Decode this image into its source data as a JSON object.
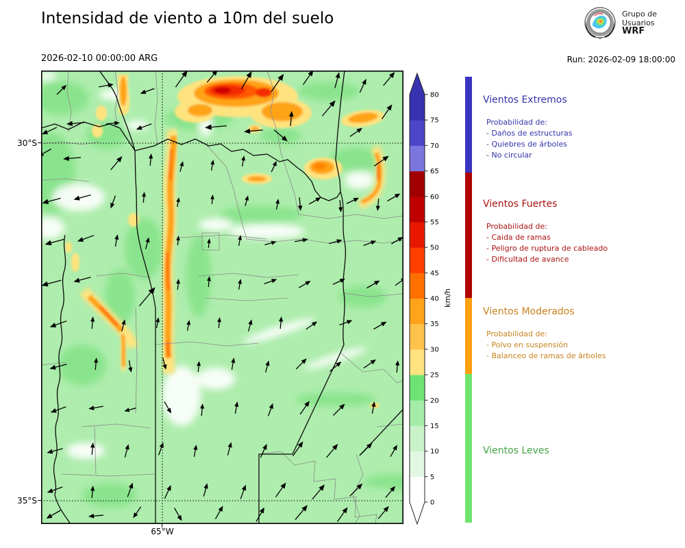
{
  "header": {
    "title": "Intensidad de viento a 10m del suelo",
    "valid_time": "2026-02-10 00:00:00 ARG",
    "run_label": "Run: 2026-02-09 18:00:00",
    "logo": {
      "line1": "Grupo de",
      "line2": "Usuarios",
      "line3": "WRF"
    }
  },
  "map": {
    "lat_labels": [
      "30°S",
      "35°S"
    ],
    "lon_label": "65°W",
    "arrows": [
      [
        30,
        28,
        45,
        20
      ],
      [
        95,
        22,
        10,
        22
      ],
      [
        155,
        30,
        200,
        22
      ],
      [
        205,
        12,
        55,
        30
      ],
      [
        250,
        8,
        50,
        24
      ],
      [
        300,
        14,
        60,
        30
      ],
      [
        345,
        18,
        55,
        32
      ],
      [
        390,
        10,
        55,
        26
      ],
      [
        432,
        14,
        75,
        24
      ],
      [
        470,
        22,
        65,
        22
      ],
      [
        508,
        12,
        50,
        26
      ],
      [
        12,
        88,
        205,
        24
      ],
      [
        50,
        77,
        185,
        26
      ],
      [
        105,
        77,
        5,
        20
      ],
      [
        150,
        82,
        200,
        24
      ],
      [
        255,
        82,
        185,
        32
      ],
      [
        310,
        88,
        185,
        28
      ],
      [
        350,
        95,
        -40,
        26
      ],
      [
        365,
        70,
        85,
        22
      ],
      [
        420,
        55,
        50,
        30
      ],
      [
        460,
        90,
        35,
        22
      ],
      [
        505,
        60,
        55,
        26
      ],
      [
        5,
        120,
        210,
        22
      ],
      [
        45,
        128,
        185,
        26
      ],
      [
        110,
        135,
        50,
        26
      ],
      [
        160,
        130,
        85,
        18
      ],
      [
        205,
        140,
        75,
        16
      ],
      [
        250,
        138,
        80,
        16
      ],
      [
        295,
        132,
        80,
        16
      ],
      [
        340,
        140,
        65,
        18
      ],
      [
        378,
        195,
        -85,
        20
      ],
      [
        437,
        198,
        -85,
        18
      ],
      [
        492,
        196,
        -95,
        18
      ],
      [
        497,
        132,
        35,
        26
      ],
      [
        15,
        190,
        195,
        28
      ],
      [
        60,
        185,
        195,
        26
      ],
      [
        105,
        192,
        -110,
        20
      ],
      [
        150,
        185,
        85,
        16
      ],
      [
        200,
        192,
        80,
        14
      ],
      [
        250,
        188,
        85,
        14
      ],
      [
        300,
        190,
        75,
        16
      ],
      [
        345,
        195,
        80,
        16
      ],
      [
        400,
        190,
        30,
        20
      ],
      [
        455,
        190,
        25,
        20
      ],
      [
        515,
        185,
        30,
        22
      ],
      [
        20,
        250,
        195,
        30
      ],
      [
        65,
        245,
        200,
        26
      ],
      [
        110,
        248,
        80,
        18
      ],
      [
        155,
        252,
        75,
        18
      ],
      [
        200,
        248,
        85,
        14
      ],
      [
        245,
        252,
        85,
        14
      ],
      [
        290,
        248,
        80,
        16
      ],
      [
        335,
        252,
        15,
        18
      ],
      [
        380,
        248,
        10,
        20
      ],
      [
        430,
        250,
        15,
        20
      ],
      [
        480,
        252,
        20,
        20
      ],
      [
        520,
        248,
        30,
        20
      ],
      [
        15,
        310,
        195,
        30
      ],
      [
        60,
        305,
        195,
        26
      ],
      [
        155,
        330,
        50,
        36
      ],
      [
        200,
        312,
        85,
        16
      ],
      [
        245,
        308,
        85,
        16
      ],
      [
        290,
        312,
        80,
        16
      ],
      [
        335,
        308,
        20,
        20
      ],
      [
        385,
        312,
        30,
        20
      ],
      [
        435,
        308,
        25,
        20
      ],
      [
        485,
        312,
        30,
        22
      ],
      [
        525,
        308,
        35,
        20
      ],
      [
        25,
        370,
        200,
        26
      ],
      [
        75,
        368,
        85,
        18
      ],
      [
        120,
        372,
        75,
        18
      ],
      [
        170,
        368,
        80,
        16
      ],
      [
        215,
        372,
        80,
        16
      ],
      [
        260,
        368,
        85,
        16
      ],
      [
        305,
        372,
        75,
        18
      ],
      [
        350,
        368,
        85,
        18
      ],
      [
        395,
        372,
        35,
        20
      ],
      [
        445,
        368,
        20,
        20
      ],
      [
        495,
        372,
        30,
        22
      ],
      [
        25,
        432,
        195,
        26
      ],
      [
        80,
        428,
        85,
        18
      ],
      [
        130,
        432,
        -80,
        18
      ],
      [
        180,
        428,
        -75,
        18
      ],
      [
        230,
        432,
        85,
        16
      ],
      [
        280,
        428,
        80,
        18
      ],
      [
        330,
        432,
        75,
        18
      ],
      [
        380,
        428,
        45,
        22
      ],
      [
        430,
        432,
        40,
        22
      ],
      [
        480,
        428,
        35,
        22
      ],
      [
        520,
        432,
        85,
        18
      ],
      [
        25,
        495,
        200,
        24
      ],
      [
        80,
        492,
        190,
        22
      ],
      [
        130,
        495,
        195,
        18
      ],
      [
        185,
        492,
        -60,
        20
      ],
      [
        235,
        495,
        85,
        18
      ],
      [
        285,
        492,
        80,
        18
      ],
      [
        335,
        495,
        70,
        20
      ],
      [
        385,
        492,
        55,
        24
      ],
      [
        435,
        495,
        45,
        24
      ],
      [
        485,
        492,
        80,
        18
      ],
      [
        20,
        555,
        195,
        24
      ],
      [
        75,
        552,
        85,
        18
      ],
      [
        125,
        555,
        75,
        20
      ],
      [
        175,
        552,
        70,
        20
      ],
      [
        225,
        555,
        80,
        18
      ],
      [
        275,
        552,
        75,
        20
      ],
      [
        325,
        555,
        65,
        22
      ],
      [
        375,
        552,
        55,
        26
      ],
      [
        425,
        555,
        50,
        26
      ],
      [
        475,
        552,
        45,
        24
      ],
      [
        515,
        555,
        60,
        20
      ],
      [
        20,
        612,
        200,
        24
      ],
      [
        75,
        615,
        85,
        18
      ],
      [
        130,
        612,
        70,
        22
      ],
      [
        185,
        615,
        65,
        22
      ],
      [
        240,
        612,
        75,
        20
      ],
      [
        295,
        615,
        70,
        22
      ],
      [
        350,
        612,
        55,
        26
      ],
      [
        405,
        615,
        50,
        28
      ],
      [
        460,
        612,
        45,
        26
      ],
      [
        510,
        615,
        50,
        22
      ],
      [
        18,
        648,
        210,
        24
      ],
      [
        80,
        650,
        185,
        22
      ],
      [
        140,
        645,
        235,
        20
      ],
      [
        200,
        648,
        -60,
        22
      ],
      [
        260,
        645,
        60,
        22
      ],
      [
        320,
        648,
        60,
        24
      ],
      [
        380,
        645,
        50,
        28
      ],
      [
        440,
        648,
        55,
        26
      ],
      [
        500,
        645,
        50,
        24
      ]
    ]
  },
  "colorbar": {
    "unit": "km/h",
    "ticks": [
      0,
      5,
      10,
      15,
      20,
      25,
      30,
      35,
      40,
      45,
      50,
      55,
      60,
      65,
      70,
      75,
      80
    ],
    "segment_colors": [
      "#ffffff",
      "#e3f8e3",
      "#c9f2c9",
      "#a5eca8",
      "#6fe475",
      "#ffe37e",
      "#ffc24a",
      "#ffa319",
      "#ff7000",
      "#ff3e00",
      "#e81800",
      "#c00000",
      "#a00000",
      "#7b76dd",
      "#4b46c8",
      "#3732b0"
    ],
    "over_color": "#3732b0",
    "under_color": "#ffffff"
  },
  "legend": {
    "sections": [
      {
        "title": "Vientos Extremos",
        "color": "#3333aa",
        "bar_color": "#3a34bf",
        "prob_label": "Probabilidad de:",
        "items": [
          "- Daños de estructuras",
          "- Quiebres de árboles",
          "- No circular"
        ]
      },
      {
        "title": "Vientos Fuertes",
        "color": "#aa1111",
        "bar_color": "#af0404",
        "prob_label": "Probabilidad de:",
        "items": [
          "- Caida de ramas",
          "- Peligro de ruptura de cableado",
          "- Dificultad de avance"
        ]
      },
      {
        "title": "Vientos Moderados",
        "color": "#c8821e",
        "bar_color": "#ffa010",
        "prob_label": "Probabilidad de:",
        "items": [
          "- Polvo en suspensión",
          "- Balanceo de ramas de árboles"
        ]
      },
      {
        "title": "Vientos Leves",
        "color": "#44a244",
        "bar_color": "#6ee46e",
        "prob_label": "",
        "items": []
      }
    ]
  }
}
